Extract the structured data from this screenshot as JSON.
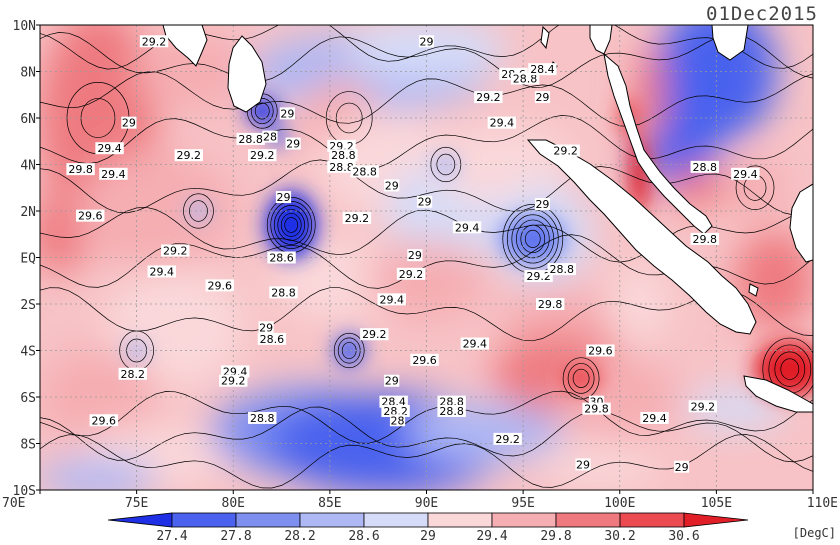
{
  "map": {
    "date": "01Dec2015",
    "units": "[DegC]",
    "lat_labels": [
      "10N",
      "8N",
      "6N",
      "4N",
      "2N",
      "EQ",
      "2S",
      "4S",
      "6S",
      "8S",
      "10S"
    ],
    "lon_labels": [
      "70E",
      "75E",
      "80E",
      "85E",
      "90E",
      "95E",
      "100E",
      "105E",
      "110E"
    ],
    "colorbar": {
      "ticks": [
        "27.4",
        "27.8",
        "28.2",
        "28.6",
        "29",
        "29.4",
        "29.8",
        "30.2",
        "30.6"
      ],
      "colors": [
        "#1f2fe6",
        "#4a62ee",
        "#7e8ff0",
        "#aeb8f4",
        "#d6dcf8",
        "#fad8da",
        "#f5aeb2",
        "#ee7a80",
        "#ea4a50",
        "#e01f28"
      ]
    },
    "contour_labels": [
      {
        "text": "29.2",
        "lon": 75.9,
        "lat": 9.3
      },
      {
        "text": "29",
        "lon": 90.0,
        "lat": 9.3
      },
      {
        "text": "28.6",
        "lon": 94.5,
        "lat": 7.9
      },
      {
        "text": "28.8",
        "lon": 95.1,
        "lat": 7.7
      },
      {
        "text": "28.4",
        "lon": 96.0,
        "lat": 8.1
      },
      {
        "text": "29",
        "lon": 82.8,
        "lat": 6.2
      },
      {
        "text": "29.2",
        "lon": 93.2,
        "lat": 6.9
      },
      {
        "text": "29",
        "lon": 96.0,
        "lat": 6.9
      },
      {
        "text": "29.4",
        "lon": 93.9,
        "lat": 5.8
      },
      {
        "text": "29",
        "lon": 74.6,
        "lat": 5.8
      },
      {
        "text": "28.8",
        "lon": 80.9,
        "lat": 5.1
      },
      {
        "text": "28",
        "lon": 81.9,
        "lat": 5.2
      },
      {
        "text": "29.4",
        "lon": 73.6,
        "lat": 4.7
      },
      {
        "text": "29",
        "lon": 83.1,
        "lat": 4.9
      },
      {
        "text": "29.2",
        "lon": 85.6,
        "lat": 4.8
      },
      {
        "text": "28.8",
        "lon": 85.7,
        "lat": 4.4
      },
      {
        "text": "29.2",
        "lon": 77.7,
        "lat": 4.4
      },
      {
        "text": "29.2",
        "lon": 81.5,
        "lat": 4.4
      },
      {
        "text": "28.8",
        "lon": 85.6,
        "lat": 3.9
      },
      {
        "text": "29.2",
        "lon": 97.2,
        "lat": 4.6
      },
      {
        "text": "29.8",
        "lon": 72.1,
        "lat": 3.8
      },
      {
        "text": "29.4",
        "lon": 73.8,
        "lat": 3.6
      },
      {
        "text": "28.8",
        "lon": 86.8,
        "lat": 3.7
      },
      {
        "text": "29",
        "lon": 88.2,
        "lat": 3.1
      },
      {
        "text": "28.8",
        "lon": 104.4,
        "lat": 3.9
      },
      {
        "text": "29.4",
        "lon": 106.5,
        "lat": 3.6
      },
      {
        "text": "29",
        "lon": 82.6,
        "lat": 2.6
      },
      {
        "text": "29",
        "lon": 89.9,
        "lat": 2.4
      },
      {
        "text": "29",
        "lon": 96.0,
        "lat": 2.3
      },
      {
        "text": "29.6",
        "lon": 72.6,
        "lat": 1.8
      },
      {
        "text": "29.2",
        "lon": 86.4,
        "lat": 1.7
      },
      {
        "text": "29.4",
        "lon": 92.1,
        "lat": 1.3
      },
      {
        "text": "29.8",
        "lon": 104.4,
        "lat": 0.8
      },
      {
        "text": "29.2",
        "lon": 77.0,
        "lat": 0.3
      },
      {
        "text": "28.6",
        "lon": 82.5,
        "lat": 0.0
      },
      {
        "text": "29",
        "lon": 89.4,
        "lat": 0.1
      },
      {
        "text": "29.4",
        "lon": 76.3,
        "lat": -0.6
      },
      {
        "text": "29.2",
        "lon": 89.2,
        "lat": -0.7
      },
      {
        "text": "29.2",
        "lon": 95.8,
        "lat": -0.8
      },
      {
        "text": "28.8",
        "lon": 97.0,
        "lat": -0.5
      },
      {
        "text": "29.6",
        "lon": 79.3,
        "lat": -1.2
      },
      {
        "text": "28.8",
        "lon": 82.6,
        "lat": -1.5
      },
      {
        "text": "29.4",
        "lon": 88.2,
        "lat": -1.8
      },
      {
        "text": "29.8",
        "lon": 96.4,
        "lat": -2.0
      },
      {
        "text": "29",
        "lon": 81.7,
        "lat": -3.0
      },
      {
        "text": "28.6",
        "lon": 82.0,
        "lat": -3.5
      },
      {
        "text": "29.2",
        "lon": 87.3,
        "lat": -3.3
      },
      {
        "text": "29.4",
        "lon": 92.5,
        "lat": -3.7
      },
      {
        "text": "29.6",
        "lon": 99.0,
        "lat": -4.0
      },
      {
        "text": "29.6",
        "lon": 89.9,
        "lat": -4.4
      },
      {
        "text": "28.2",
        "lon": 74.8,
        "lat": -5.0
      },
      {
        "text": "29.4",
        "lon": 80.1,
        "lat": -4.9
      },
      {
        "text": "29.2",
        "lon": 80.0,
        "lat": -5.3
      },
      {
        "text": "29",
        "lon": 88.2,
        "lat": -5.3
      },
      {
        "text": "28.4",
        "lon": 88.3,
        "lat": -6.2
      },
      {
        "text": "28.8",
        "lon": 91.3,
        "lat": -6.2
      },
      {
        "text": "28.2",
        "lon": 88.4,
        "lat": -6.6
      },
      {
        "text": "28.8",
        "lon": 91.3,
        "lat": -6.6
      },
      {
        "text": "28",
        "lon": 88.5,
        "lat": -7.0
      },
      {
        "text": "30",
        "lon": 98.8,
        "lat": -6.2
      },
      {
        "text": "29.8",
        "lon": 98.8,
        "lat": -6.5
      },
      {
        "text": "29.2",
        "lon": 104.3,
        "lat": -6.4
      },
      {
        "text": "29.4",
        "lon": 101.8,
        "lat": -6.9
      },
      {
        "text": "29.6",
        "lon": 73.3,
        "lat": -7.0
      },
      {
        "text": "28.8",
        "lon": 81.5,
        "lat": -6.9
      },
      {
        "text": "29.2",
        "lon": 94.2,
        "lat": -7.8
      },
      {
        "text": "29",
        "lon": 98.1,
        "lat": -8.9
      },
      {
        "text": "29",
        "lon": 103.2,
        "lat": -9.0
      }
    ]
  }
}
